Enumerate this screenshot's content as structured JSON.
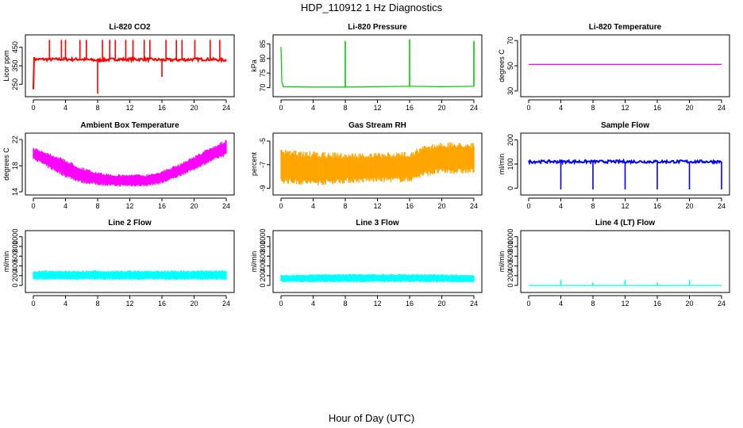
{
  "figure": {
    "title": "HDP_110912  1 Hz Diagnostics",
    "xlabel": "Hour of Day (UTC)"
  },
  "chart_data": [
    {
      "type": "line",
      "title": "Li-820 CO2",
      "ylabel": "Licor ppm",
      "color": "#ff0000",
      "xlim": [
        0,
        24
      ],
      "ylim": [
        200,
        500
      ],
      "xticks": [
        0,
        4,
        8,
        12,
        16,
        20,
        24
      ],
      "yticks": [
        250,
        350,
        450
      ],
      "series": [
        {
          "name": "CO2",
          "style": "noisy",
          "x": [
            0,
            0.1,
            0.3,
            2,
            4,
            6,
            8,
            10,
            12,
            14,
            16,
            18,
            20,
            22,
            24
          ],
          "y": [
            230,
            390,
            385,
            385,
            385,
            385,
            380,
            385,
            385,
            385,
            382,
            382,
            385,
            385,
            380
          ]
        }
      ],
      "spikes": [
        {
          "x": 2,
          "top": 490
        },
        {
          "x": 3.5,
          "top": 490
        },
        {
          "x": 4,
          "top": 490
        },
        {
          "x": 5.8,
          "top": 490
        },
        {
          "x": 6.6,
          "top": 490
        },
        {
          "x": 8,
          "top": 200
        },
        {
          "x": 8.6,
          "top": 490
        },
        {
          "x": 9.5,
          "top": 490
        },
        {
          "x": 10.2,
          "top": 490
        },
        {
          "x": 11.5,
          "top": 490
        },
        {
          "x": 12.4,
          "top": 490
        },
        {
          "x": 13.8,
          "top": 490
        },
        {
          "x": 14.5,
          "top": 490
        },
        {
          "x": 16,
          "top": 290
        },
        {
          "x": 16.5,
          "top": 490
        },
        {
          "x": 17.8,
          "top": 490
        },
        {
          "x": 18.5,
          "top": 490
        },
        {
          "x": 20.1,
          "top": 490
        },
        {
          "x": 22,
          "top": 490
        },
        {
          "x": 23.2,
          "top": 490
        }
      ]
    },
    {
      "type": "line",
      "title": "Li-820 Pressure",
      "ylabel": "kPa",
      "color": "#00c800",
      "xlim": [
        0,
        24
      ],
      "ylim": [
        68,
        87
      ],
      "xticks": [
        0,
        4,
        8,
        12,
        16,
        20,
        24
      ],
      "yticks": [
        70,
        75,
        80,
        85
      ],
      "series": [
        {
          "name": "Pressure",
          "style": "line",
          "x": [
            0,
            0.1,
            0.3,
            4,
            8,
            12,
            16,
            20,
            24
          ],
          "y": [
            84,
            72,
            70.3,
            70.2,
            70.2,
            70.3,
            70.5,
            70.3,
            70.5
          ]
        }
      ],
      "spikes": [
        {
          "x": 8,
          "top": 86
        },
        {
          "x": 16,
          "top": 86.5
        },
        {
          "x": 24,
          "top": 86
        }
      ]
    },
    {
      "type": "line",
      "title": "Li-820 Temperature",
      "ylabel": "degrees C",
      "color": "#ff00ff",
      "xlim": [
        0,
        24
      ],
      "ylim": [
        28,
        72
      ],
      "xticks": [
        0,
        4,
        8,
        12,
        16,
        20,
        24
      ],
      "yticks": [
        30,
        50,
        70
      ],
      "series": [
        {
          "name": "Temperature",
          "style": "line",
          "x": [
            0,
            24
          ],
          "y": [
            51,
            51
          ]
        }
      ],
      "spikes": []
    },
    {
      "type": "area",
      "title": "Ambient Box Temperature",
      "ylabel": "degrees C",
      "color": "#ff00ff",
      "xlim": [
        0,
        24
      ],
      "ylim": [
        14,
        22.5
      ],
      "xticks": [
        0,
        4,
        8,
        12,
        16,
        20,
        24
      ],
      "yticks": [
        14,
        18,
        22
      ],
      "series": [
        {
          "name": "Box temperature",
          "style": "band",
          "x": [
            0,
            2,
            4,
            6,
            8,
            10,
            12,
            14,
            16,
            18,
            20,
            22,
            24
          ],
          "lo": [
            19,
            17.5,
            16.2,
            15.3,
            15,
            14.8,
            14.8,
            14.8,
            15.2,
            16.2,
            17.3,
            18.5,
            19.5
          ],
          "hi": [
            20.8,
            20,
            19,
            17.8,
            17,
            16.7,
            16.7,
            16.7,
            17.2,
            18.2,
            19.5,
            20.8,
            22
          ]
        }
      ],
      "spikes": []
    },
    {
      "type": "area",
      "title": "Gas Stream RH",
      "ylabel": "percent",
      "color": "#ffa500",
      "xlim": [
        0,
        24
      ],
      "ylim": [
        -9.3,
        -4.6
      ],
      "xticks": [
        0,
        4,
        8,
        12,
        16,
        20,
        24
      ],
      "yticks": [
        -9,
        -7,
        -5
      ],
      "series": [
        {
          "name": "RH",
          "style": "band",
          "x": [
            0,
            4,
            8,
            12,
            16,
            18,
            20,
            24
          ],
          "lo": [
            -8.6,
            -8.8,
            -8.6,
            -8.5,
            -8.5,
            -8.0,
            -7.8,
            -7.8
          ],
          "hi": [
            -5.7,
            -5.9,
            -6.0,
            -6.0,
            -5.9,
            -5.3,
            -5.1,
            -5.1
          ]
        }
      ],
      "spikes": []
    },
    {
      "type": "line",
      "title": "Sample Flow",
      "ylabel": "ml/min",
      "color": "#0000ff",
      "xlim": [
        0,
        24
      ],
      "ylim": [
        -15,
        215
      ],
      "xticks": [
        0,
        4,
        8,
        12,
        16,
        20,
        24
      ],
      "yticks": [
        0,
        100,
        200
      ],
      "series": [
        {
          "name": "Sample flow",
          "style": "noisy",
          "x": [
            0,
            24
          ],
          "y": [
            110,
            110
          ]
        }
      ],
      "spikes": [
        {
          "x": 4,
          "top": -5
        },
        {
          "x": 8,
          "top": -5
        },
        {
          "x": 12,
          "top": -5
        },
        {
          "x": 16,
          "top": -5
        },
        {
          "x": 20,
          "top": -5
        },
        {
          "x": 24,
          "top": -5
        }
      ]
    },
    {
      "type": "area",
      "title": "Line 2 Flow",
      "ylabel": "ml/min",
      "color": "#00ffff",
      "xlim": [
        0,
        24
      ],
      "ylim": [
        -80,
        1060
      ],
      "xticks": [
        0,
        4,
        8,
        12,
        16,
        20,
        24
      ],
      "yticks": [
        0,
        200,
        400,
        600,
        800,
        1000
      ],
      "series": [
        {
          "name": "Line 2",
          "style": "band",
          "x": [
            0,
            24
          ],
          "lo": [
            110,
            110
          ],
          "hi": [
            310,
            310
          ]
        }
      ],
      "spikes": []
    },
    {
      "type": "area",
      "title": "Line 3 Flow",
      "ylabel": "ml/min",
      "color": "#00ffff",
      "xlim": [
        0,
        24
      ],
      "ylim": [
        -80,
        1060
      ],
      "xticks": [
        0,
        4,
        8,
        12,
        16,
        20,
        24
      ],
      "yticks": [
        0,
        200,
        400,
        600,
        800,
        1000
      ],
      "series": [
        {
          "name": "Line 3",
          "style": "band",
          "x": [
            0,
            4,
            8,
            12,
            16,
            20,
            24
          ],
          "lo": [
            60,
            60,
            60,
            60,
            60,
            60,
            60
          ],
          "hi": [
            220,
            230,
            240,
            240,
            240,
            230,
            220
          ]
        }
      ],
      "spikes": []
    },
    {
      "type": "line",
      "title": "Line 4 (LT) Flow",
      "ylabel": "ml/min",
      "color": "#00ffff",
      "xlim": [
        0,
        24
      ],
      "ylim": [
        -80,
        1060
      ],
      "xticks": [
        0,
        4,
        8,
        12,
        16,
        20,
        24
      ],
      "yticks": [
        0,
        200,
        400,
        600,
        800,
        1000
      ],
      "series": [
        {
          "name": "Line 4",
          "style": "line",
          "x": [
            0,
            24
          ],
          "y": [
            0,
            0
          ]
        }
      ],
      "spikes": [
        {
          "x": 4,
          "top": 110
        },
        {
          "x": 8,
          "top": 60
        },
        {
          "x": 12,
          "top": 110
        },
        {
          "x": 16,
          "top": 60
        },
        {
          "x": 20,
          "top": 110
        }
      ]
    }
  ]
}
